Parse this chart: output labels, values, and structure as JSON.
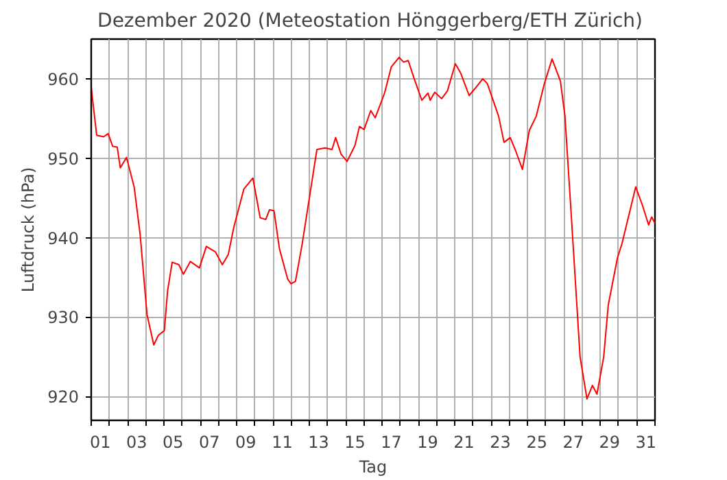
{
  "chart_data": {
    "type": "line",
    "title": "Dezember 2020  (Meteostation Hönggerberg/ETH Zürich)",
    "xlabel": "Tag",
    "ylabel": "Luftdruck (hPa)",
    "xlim": [
      1,
      32
    ],
    "ylim": [
      917,
      965
    ],
    "yticks": [
      920,
      930,
      940,
      950,
      960
    ],
    "xticks": [
      {
        "value": 1,
        "label": null
      },
      {
        "value": 2,
        "label": null
      },
      {
        "value": 3,
        "label": null
      },
      {
        "value": 4,
        "label": null
      },
      {
        "value": 5,
        "label": null
      },
      {
        "value": 6,
        "label": null
      },
      {
        "value": 7,
        "label": null
      },
      {
        "value": 8,
        "label": null
      },
      {
        "value": 9,
        "label": null
      },
      {
        "value": 10,
        "label": null
      },
      {
        "value": 11,
        "label": null
      },
      {
        "value": 12,
        "label": null
      },
      {
        "value": 13,
        "label": null
      },
      {
        "value": 14,
        "label": null
      },
      {
        "value": 15,
        "label": null
      },
      {
        "value": 16,
        "label": null
      },
      {
        "value": 17,
        "label": null
      },
      {
        "value": 18,
        "label": null
      },
      {
        "value": 19,
        "label": null
      },
      {
        "value": 20,
        "label": null
      },
      {
        "value": 21,
        "label": null
      },
      {
        "value": 22,
        "label": null
      },
      {
        "value": 23,
        "label": null
      },
      {
        "value": 24,
        "label": null
      },
      {
        "value": 25,
        "label": null
      },
      {
        "value": 26,
        "label": null
      },
      {
        "value": 27,
        "label": null
      },
      {
        "value": 28,
        "label": null
      },
      {
        "value": 29,
        "label": null
      },
      {
        "value": 30,
        "label": null
      },
      {
        "value": 31,
        "label": null
      },
      {
        "value": 32,
        "label": null
      },
      {
        "value": 1.5,
        "label": "01"
      },
      {
        "value": 3.5,
        "label": "03"
      },
      {
        "value": 5.5,
        "label": "05"
      },
      {
        "value": 7.5,
        "label": "07"
      },
      {
        "value": 9.5,
        "label": "09"
      },
      {
        "value": 11.5,
        "label": "11"
      },
      {
        "value": 13.5,
        "label": "13"
      },
      {
        "value": 15.5,
        "label": "15"
      },
      {
        "value": 17.5,
        "label": "17"
      },
      {
        "value": 19.5,
        "label": "19"
      },
      {
        "value": 21.5,
        "label": "21"
      },
      {
        "value": 23.5,
        "label": "23"
      },
      {
        "value": 25.5,
        "label": "25"
      },
      {
        "value": 27.5,
        "label": "27"
      },
      {
        "value": 29.5,
        "label": "29"
      },
      {
        "value": 31.5,
        "label": "31"
      }
    ],
    "grid": true,
    "line_style": "solid",
    "marker": "none",
    "series": [
      {
        "color": "#ff0000",
        "x": [
          1.0,
          1.05,
          1.3,
          1.68,
          1.93,
          2.18,
          2.43,
          2.6,
          2.94,
          3.36,
          3.69,
          4.07,
          4.44,
          4.69,
          5.02,
          5.2,
          5.45,
          5.82,
          6.07,
          6.45,
          6.95,
          7.33,
          7.83,
          8.21,
          8.54,
          8.84,
          9.39,
          9.89,
          10.29,
          10.6,
          10.8,
          11.05,
          11.35,
          11.8,
          11.98,
          12.23,
          12.6,
          13.41,
          13.86,
          14.24,
          14.44,
          14.74,
          15.07,
          15.5,
          15.75,
          16.0,
          16.37,
          16.62,
          17.13,
          17.5,
          17.93,
          18.18,
          18.43,
          18.76,
          19.18,
          19.52,
          19.64,
          19.89,
          20.27,
          20.59,
          21.02,
          21.32,
          21.78,
          22.15,
          22.53,
          22.78,
          23.4,
          23.7,
          24.04,
          24.36,
          24.71,
          25.09,
          25.47,
          25.92,
          26.34,
          26.8,
          27.05,
          27.43,
          27.88,
          28.26,
          28.56,
          28.81,
          29.18,
          29.43,
          29.94,
          30.18,
          30.56,
          30.94,
          31.32,
          31.65,
          31.82,
          32.0
        ],
        "values": [
          959.0,
          957.9,
          952.9,
          952.7,
          953.1,
          951.5,
          951.4,
          948.8,
          950.1,
          946.4,
          940.4,
          930.3,
          926.5,
          927.7,
          928.3,
          933.3,
          936.9,
          936.6,
          935.4,
          937.0,
          936.2,
          938.9,
          938.2,
          936.6,
          937.9,
          941.3,
          946.1,
          947.5,
          942.5,
          942.3,
          943.5,
          943.4,
          938.6,
          934.8,
          934.2,
          934.5,
          939.2,
          951.1,
          951.3,
          951.1,
          952.6,
          950.5,
          949.6,
          951.6,
          954.0,
          953.6,
          956.0,
          955.1,
          958.2,
          961.5,
          962.7,
          962.1,
          962.3,
          960.0,
          957.3,
          958.2,
          957.3,
          958.3,
          957.5,
          958.5,
          961.9,
          960.7,
          957.9,
          958.9,
          960.0,
          959.4,
          955.3,
          952.0,
          952.6,
          950.8,
          948.6,
          953.5,
          955.3,
          959.4,
          962.5,
          959.7,
          955.3,
          941.6,
          925.0,
          919.7,
          921.4,
          920.3,
          925.0,
          931.5,
          937.5,
          939.2,
          942.8,
          946.4,
          944.0,
          941.6,
          942.6,
          941.8
        ]
      }
    ]
  }
}
